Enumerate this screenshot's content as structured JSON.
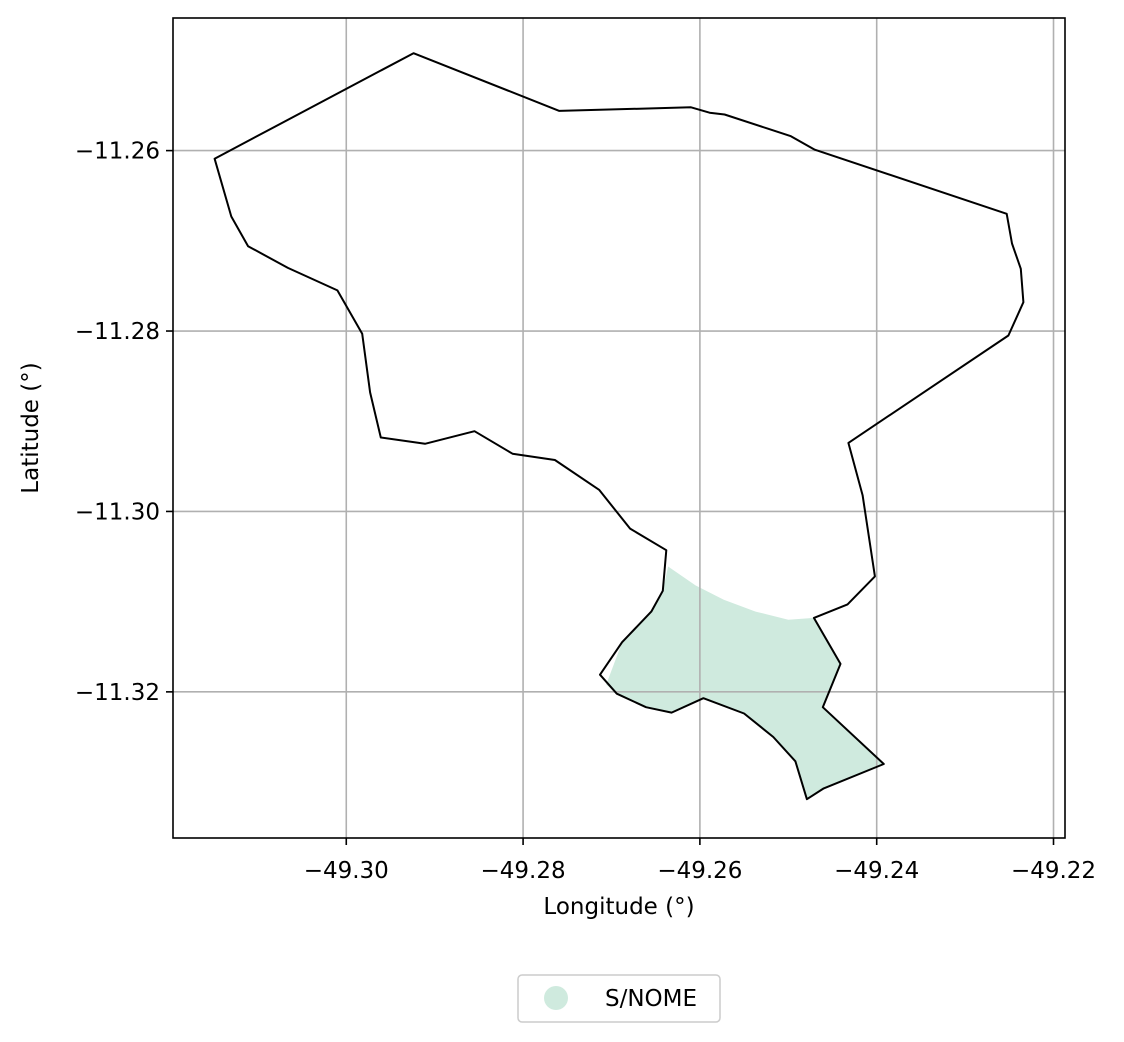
{
  "chart_data": {
    "type": "map",
    "xlabel": "Longitude (°)",
    "ylabel": "Latitude (°)",
    "xlim": [
      -49.3196,
      -49.2187
    ],
    "ylim": [
      -11.3362,
      -11.2453
    ],
    "grid": true,
    "x_ticks": [
      {
        "value": -49.3,
        "label": "−49.30"
      },
      {
        "value": -49.28,
        "label": "−49.28"
      },
      {
        "value": -49.26,
        "label": "−49.26"
      },
      {
        "value": -49.24,
        "label": "−49.24"
      },
      {
        "value": -49.22,
        "label": "−49.22"
      }
    ],
    "y_ticks": [
      {
        "value": -11.26,
        "label": "−11.26"
      },
      {
        "value": -11.28,
        "label": "−11.28"
      },
      {
        "value": -11.3,
        "label": "−11.30"
      },
      {
        "value": -11.32,
        "label": "−11.32"
      }
    ],
    "boundary": {
      "color": "#000000",
      "coordinates": [
        [
          -49.2924,
          -11.2492
        ],
        [
          -49.2759,
          -11.2556
        ],
        [
          -49.261,
          -11.2552
        ],
        [
          -49.2589,
          -11.2558
        ],
        [
          -49.2572,
          -11.256
        ],
        [
          -49.2497,
          -11.2584
        ],
        [
          -49.247,
          -11.2599
        ],
        [
          -49.2253,
          -11.267
        ],
        [
          -49.2247,
          -11.2703
        ],
        [
          -49.2237,
          -11.2731
        ],
        [
          -49.2234,
          -11.2768
        ],
        [
          -49.2251,
          -11.2805
        ],
        [
          -49.2432,
          -11.2924
        ],
        [
          -49.2416,
          -11.2982
        ],
        [
          -49.2402,
          -11.3072
        ],
        [
          -49.2433,
          -11.3103
        ],
        [
          -49.2471,
          -11.3118
        ],
        [
          -49.2441,
          -11.3169
        ],
        [
          -49.2461,
          -11.3217
        ],
        [
          -49.2392,
          -11.328
        ],
        [
          -49.246,
          -11.3307
        ],
        [
          -49.2479,
          -11.3319
        ],
        [
          -49.2492,
          -11.3277
        ],
        [
          -49.2517,
          -11.325
        ],
        [
          -49.255,
          -11.3224
        ],
        [
          -49.2596,
          -11.3207
        ],
        [
          -49.2632,
          -11.3223
        ],
        [
          -49.2661,
          -11.3217
        ],
        [
          -49.2694,
          -11.3202
        ],
        [
          -49.2713,
          -11.3181
        ],
        [
          -49.2688,
          -11.3145
        ],
        [
          -49.2655,
          -11.3111
        ],
        [
          -49.2642,
          -11.3088
        ],
        [
          -49.2638,
          -11.3043
        ],
        [
          -49.2679,
          -11.3019
        ],
        [
          -49.2714,
          -11.2976
        ],
        [
          -49.2764,
          -11.2943
        ],
        [
          -49.2812,
          -11.2936
        ],
        [
          -49.2855,
          -11.2911
        ],
        [
          -49.2911,
          -11.2925
        ],
        [
          -49.2961,
          -11.2918
        ],
        [
          -49.2973,
          -11.2868
        ],
        [
          -49.2982,
          -11.2803
        ],
        [
          -49.301,
          -11.2755
        ],
        [
          -49.3066,
          -11.273
        ],
        [
          -49.3111,
          -11.2706
        ],
        [
          -49.313,
          -11.2673
        ],
        [
          -49.3149,
          -11.2609
        ],
        [
          -49.2924,
          -11.2492
        ]
      ]
    },
    "series": [
      {
        "name": "S/NOME",
        "color": "#cfeade",
        "coordinates": [
          [
            -49.2636,
            -11.3061
          ],
          [
            -49.2605,
            -11.3082
          ],
          [
            -49.2573,
            -11.3098
          ],
          [
            -49.2537,
            -11.3111
          ],
          [
            -49.25,
            -11.312
          ],
          [
            -49.2471,
            -11.3118
          ],
          [
            -49.2441,
            -11.3169
          ],
          [
            -49.2461,
            -11.3217
          ],
          [
            -49.2392,
            -11.328
          ],
          [
            -49.246,
            -11.3307
          ],
          [
            -49.2479,
            -11.3319
          ],
          [
            -49.2492,
            -11.3277
          ],
          [
            -49.2517,
            -11.325
          ],
          [
            -49.255,
            -11.3224
          ],
          [
            -49.2596,
            -11.3207
          ],
          [
            -49.2632,
            -11.3223
          ],
          [
            -49.2661,
            -11.3217
          ],
          [
            -49.2694,
            -11.3202
          ],
          [
            -49.2706,
            -11.3192
          ],
          [
            -49.2688,
            -11.3145
          ],
          [
            -49.2655,
            -11.3111
          ],
          [
            -49.2642,
            -11.3088
          ],
          [
            -49.2636,
            -11.3061
          ]
        ]
      }
    ],
    "legend": {
      "placement": "bottom-center",
      "entries": [
        "S/NOME"
      ]
    }
  }
}
